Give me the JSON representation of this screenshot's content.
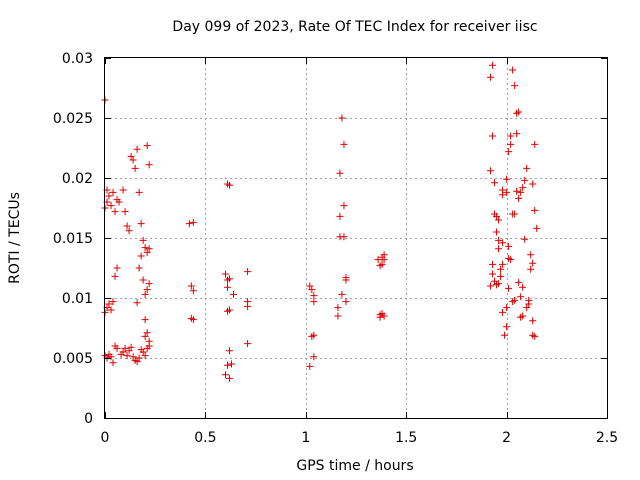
{
  "colors": {
    "series": "#dd0000",
    "grid": "#a0a0a0",
    "axis": "#000000",
    "background": "#ffffff"
  },
  "chart_data": {
    "type": "scatter",
    "title": "Day 099 of 2023, Rate Of TEC Index for receiver iisc",
    "xlabel": "GPS time / hours",
    "ylabel": "ROTI / TECUs",
    "xlim": [
      0,
      2.5
    ],
    "ylim": [
      0,
      0.03
    ],
    "xticks": [
      0,
      0.5,
      1,
      1.5,
      2,
      2.5
    ],
    "xtick_labels": [
      "0",
      "0.5",
      "1",
      "1.5",
      "2",
      "2.5"
    ],
    "yticks": [
      0,
      0.005,
      0.01,
      0.015,
      0.02,
      0.025,
      0.03
    ],
    "ytick_labels": [
      "0",
      "0.005",
      "0.01",
      "0.015",
      "0.02",
      "0.025",
      "0.03"
    ],
    "grid": true,
    "marker": "+",
    "series": [
      {
        "name": "ROTI",
        "points": [
          [
            0.0,
            0.0265
          ],
          [
            0.0,
            0.0175
          ],
          [
            0.01,
            0.018
          ],
          [
            0.01,
            0.019
          ],
          [
            0.02,
            0.0185
          ],
          [
            0.03,
            0.0177
          ],
          [
            0.04,
            0.0188
          ],
          [
            0.05,
            0.0172
          ],
          [
            0.06,
            0.0182
          ],
          [
            0.07,
            0.018
          ],
          [
            0.0,
            0.0088
          ],
          [
            0.01,
            0.0092
          ],
          [
            0.02,
            0.0095
          ],
          [
            0.03,
            0.009
          ],
          [
            0.04,
            0.0097
          ],
          [
            0.05,
            0.0118
          ],
          [
            0.06,
            0.0125
          ],
          [
            0.0,
            0.0052
          ],
          [
            0.01,
            0.005
          ],
          [
            0.02,
            0.0053
          ],
          [
            0.03,
            0.0051
          ],
          [
            0.04,
            0.0046
          ],
          [
            0.05,
            0.006
          ],
          [
            0.06,
            0.0058
          ],
          [
            0.08,
            0.0053
          ],
          [
            0.09,
            0.0055
          ],
          [
            0.1,
            0.0058
          ],
          [
            0.11,
            0.0052
          ],
          [
            0.12,
            0.0056
          ],
          [
            0.13,
            0.0059
          ],
          [
            0.14,
            0.0051
          ],
          [
            0.15,
            0.0048
          ],
          [
            0.16,
            0.0047
          ],
          [
            0.17,
            0.005
          ],
          [
            0.18,
            0.0057
          ],
          [
            0.19,
            0.0055
          ],
          [
            0.2,
            0.0052
          ],
          [
            0.21,
            0.0058
          ],
          [
            0.22,
            0.006
          ],
          [
            0.09,
            0.019
          ],
          [
            0.1,
            0.0172
          ],
          [
            0.11,
            0.016
          ],
          [
            0.12,
            0.0156
          ],
          [
            0.13,
            0.0218
          ],
          [
            0.14,
            0.0215
          ],
          [
            0.15,
            0.0208
          ],
          [
            0.16,
            0.0224
          ],
          [
            0.17,
            0.0188
          ],
          [
            0.16,
            0.0096
          ],
          [
            0.17,
            0.0125
          ],
          [
            0.18,
            0.0135
          ],
          [
            0.18,
            0.0162
          ],
          [
            0.19,
            0.0148
          ],
          [
            0.19,
            0.0115
          ],
          [
            0.2,
            0.0142
          ],
          [
            0.2,
            0.0103
          ],
          [
            0.2,
            0.0082
          ],
          [
            0.2,
            0.0068
          ],
          [
            0.21,
            0.0227
          ],
          [
            0.21,
            0.0138
          ],
          [
            0.21,
            0.0107
          ],
          [
            0.21,
            0.0071
          ],
          [
            0.22,
            0.0211
          ],
          [
            0.22,
            0.0141
          ],
          [
            0.22,
            0.0112
          ],
          [
            0.22,
            0.0064
          ],
          [
            0.42,
            0.0162
          ],
          [
            0.43,
            0.011
          ],
          [
            0.43,
            0.0083
          ],
          [
            0.44,
            0.0163
          ],
          [
            0.44,
            0.0106
          ],
          [
            0.44,
            0.0082
          ],
          [
            0.6,
            0.012
          ],
          [
            0.6,
            0.0036
          ],
          [
            0.61,
            0.0115
          ],
          [
            0.61,
            0.0109
          ],
          [
            0.61,
            0.0089
          ],
          [
            0.61,
            0.0195
          ],
          [
            0.61,
            0.0044
          ],
          [
            0.62,
            0.0194
          ],
          [
            0.62,
            0.0116
          ],
          [
            0.62,
            0.009
          ],
          [
            0.62,
            0.0033
          ],
          [
            0.62,
            0.0056
          ],
          [
            0.63,
            0.0045
          ],
          [
            0.64,
            0.0103
          ],
          [
            0.71,
            0.0122
          ],
          [
            0.71,
            0.0097
          ],
          [
            0.71,
            0.0093
          ],
          [
            0.71,
            0.0062
          ],
          [
            1.02,
            0.011
          ],
          [
            1.02,
            0.0043
          ],
          [
            1.03,
            0.0107
          ],
          [
            1.03,
            0.0068
          ],
          [
            1.04,
            0.0102
          ],
          [
            1.04,
            0.0097
          ],
          [
            1.04,
            0.0069
          ],
          [
            1.04,
            0.0051
          ],
          [
            1.16,
            0.0092
          ],
          [
            1.16,
            0.0085
          ],
          [
            1.17,
            0.0168
          ],
          [
            1.17,
            0.0204
          ],
          [
            1.17,
            0.0151
          ],
          [
            1.18,
            0.025
          ],
          [
            1.18,
            0.0103
          ],
          [
            1.19,
            0.0228
          ],
          [
            1.19,
            0.0177
          ],
          [
            1.19,
            0.0151
          ],
          [
            1.2,
            0.0117
          ],
          [
            1.2,
            0.0097
          ],
          [
            1.2,
            0.0115
          ],
          [
            1.36,
            0.0132
          ],
          [
            1.37,
            0.0127
          ],
          [
            1.37,
            0.0084
          ],
          [
            1.37,
            0.0086
          ],
          [
            1.38,
            0.0134
          ],
          [
            1.38,
            0.0128
          ],
          [
            1.38,
            0.0087
          ],
          [
            1.39,
            0.0136
          ],
          [
            1.39,
            0.0132
          ],
          [
            1.39,
            0.0085
          ],
          [
            1.92,
            0.0284
          ],
          [
            1.93,
            0.0294
          ],
          [
            1.92,
            0.0206
          ],
          [
            1.93,
            0.0235
          ],
          [
            1.94,
            0.0196
          ],
          [
            1.94,
            0.017
          ],
          [
            1.95,
            0.0168
          ],
          [
            1.93,
            0.012
          ],
          [
            1.92,
            0.011
          ],
          [
            1.93,
            0.0128
          ],
          [
            1.94,
            0.0114
          ],
          [
            1.95,
            0.0111
          ],
          [
            1.96,
            0.0112
          ],
          [
            1.96,
            0.0165
          ],
          [
            1.96,
            0.0148
          ],
          [
            1.95,
            0.0155
          ],
          [
            1.96,
            0.0141
          ],
          [
            1.97,
            0.0118
          ],
          [
            1.97,
            0.0124
          ],
          [
            1.98,
            0.019
          ],
          [
            1.98,
            0.0186
          ],
          [
            1.98,
            0.0146
          ],
          [
            1.98,
            0.0128
          ],
          [
            1.98,
            0.0088
          ],
          [
            1.99,
            0.0069
          ],
          [
            2.0,
            0.0076
          ],
          [
            2.0,
            0.0092
          ],
          [
            2.0,
            0.0188
          ],
          [
            2.0,
            0.0199
          ],
          [
            2.01,
            0.0222
          ],
          [
            2.01,
            0.0143
          ],
          [
            2.01,
            0.0133
          ],
          [
            2.01,
            0.0108
          ],
          [
            2.02,
            0.0132
          ],
          [
            2.02,
            0.0228
          ],
          [
            2.02,
            0.0235
          ],
          [
            2.03,
            0.029
          ],
          [
            2.03,
            0.017
          ],
          [
            2.03,
            0.0097
          ],
          [
            2.04,
            0.0277
          ],
          [
            2.04,
            0.017
          ],
          [
            2.04,
            0.0098
          ],
          [
            2.05,
            0.0254
          ],
          [
            2.05,
            0.0237
          ],
          [
            2.05,
            0.0189
          ],
          [
            2.06,
            0.0183
          ],
          [
            2.06,
            0.0255
          ],
          [
            2.06,
            0.0113
          ],
          [
            2.07,
            0.0188
          ],
          [
            2.07,
            0.0084
          ],
          [
            2.07,
            0.0101
          ],
          [
            2.08,
            0.0109
          ],
          [
            2.08,
            0.0192
          ],
          [
            2.08,
            0.0085
          ],
          [
            2.09,
            0.0149
          ],
          [
            2.09,
            0.0198
          ],
          [
            2.1,
            0.0208
          ],
          [
            2.1,
            0.0092
          ],
          [
            2.11,
            0.0098
          ],
          [
            2.11,
            0.0095
          ],
          [
            2.12,
            0.0136
          ],
          [
            2.12,
            0.0124
          ],
          [
            2.13,
            0.0195
          ],
          [
            2.13,
            0.0129
          ],
          [
            2.13,
            0.0081
          ],
          [
            2.13,
            0.0069
          ],
          [
            2.14,
            0.0228
          ],
          [
            2.14,
            0.0173
          ],
          [
            2.14,
            0.0068
          ],
          [
            2.15,
            0.0158
          ]
        ]
      }
    ]
  }
}
